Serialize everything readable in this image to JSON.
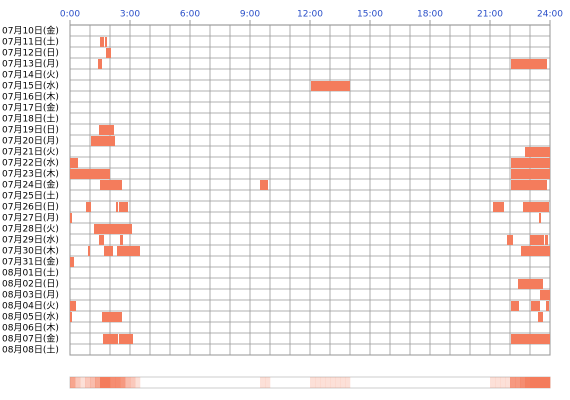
{
  "chart_data": {
    "type": "timeline",
    "color": "#f47c5c",
    "xlim": [
      0,
      24
    ],
    "xticks": [
      {
        "value": 0,
        "label": "0:00"
      },
      {
        "value": 3,
        "label": "3:00"
      },
      {
        "value": 6,
        "label": "6:00"
      },
      {
        "value": 9,
        "label": "9:00"
      },
      {
        "value": 12,
        "label": "12:00"
      },
      {
        "value": 15,
        "label": "15:00"
      },
      {
        "value": 18,
        "label": "18:00"
      },
      {
        "value": 21,
        "label": "21:00"
      },
      {
        "value": 24,
        "label": "24:00"
      }
    ],
    "grid": true,
    "rows": [
      {
        "label": "07月10日(金)",
        "segments": []
      },
      {
        "label": "07月11日(土)",
        "segments": [
          [
            1.5,
            1.7
          ],
          [
            1.75,
            1.85
          ]
        ]
      },
      {
        "label": "07月12日(日)",
        "segments": [
          [
            1.8,
            2.05
          ]
        ]
      },
      {
        "label": "07月13日(月)",
        "segments": [
          [
            1.4,
            1.6
          ],
          [
            22.05,
            23.85
          ]
        ]
      },
      {
        "label": "07月14日(火)",
        "segments": []
      },
      {
        "label": "07月15日(水)",
        "segments": [
          [
            12.05,
            14.0
          ]
        ]
      },
      {
        "label": "07月16日(木)",
        "segments": []
      },
      {
        "label": "07月17日(金)",
        "segments": []
      },
      {
        "label": "07月18日(土)",
        "segments": []
      },
      {
        "label": "07月19日(日)",
        "segments": [
          [
            1.45,
            2.2
          ]
        ]
      },
      {
        "label": "07月20日(月)",
        "segments": [
          [
            1.05,
            2.25
          ]
        ]
      },
      {
        "label": "07月21日(火)",
        "segments": [
          [
            22.75,
            24
          ]
        ]
      },
      {
        "label": "07月22日(水)",
        "segments": [
          [
            0,
            0.4
          ],
          [
            22.05,
            24
          ]
        ]
      },
      {
        "label": "07月23日(木)",
        "segments": [
          [
            0,
            2.0
          ],
          [
            22.05,
            24
          ]
        ]
      },
      {
        "label": "07月24日(金)",
        "segments": [
          [
            1.5,
            2.6
          ],
          [
            9.5,
            9.9
          ],
          [
            22.05,
            23.85
          ]
        ]
      },
      {
        "label": "07月25日(土)",
        "segments": []
      },
      {
        "label": "07月26日(日)",
        "segments": [
          [
            0.8,
            1.05
          ],
          [
            2.3,
            2.4
          ],
          [
            2.45,
            2.9
          ],
          [
            21.15,
            21.7
          ],
          [
            22.65,
            23.95
          ]
        ]
      },
      {
        "label": "07月27日(月)",
        "segments": [
          [
            0,
            0.1
          ],
          [
            23.45,
            23.55
          ]
        ]
      },
      {
        "label": "07月28日(火)",
        "segments": [
          [
            1.2,
            3.1
          ]
        ]
      },
      {
        "label": "07月29日(水)",
        "segments": [
          [
            1.45,
            1.7
          ],
          [
            2.5,
            2.65
          ],
          [
            21.85,
            22.15
          ],
          [
            23.0,
            23.7
          ],
          [
            23.75,
            23.9
          ]
        ]
      },
      {
        "label": "07月30日(木)",
        "segments": [
          [
            0.9,
            1.0
          ],
          [
            1.7,
            2.15
          ],
          [
            2.35,
            3.5
          ],
          [
            22.55,
            24
          ]
        ]
      },
      {
        "label": "07月31日(金)",
        "segments": [
          [
            0,
            0.2
          ]
        ]
      },
      {
        "label": "08月01日(土)",
        "segments": []
      },
      {
        "label": "08月02日(日)",
        "segments": [
          [
            22.4,
            23.65
          ]
        ]
      },
      {
        "label": "08月03日(月)",
        "segments": [
          [
            23.5,
            24
          ]
        ]
      },
      {
        "label": "08月04日(火)",
        "segments": [
          [
            0,
            0.3
          ],
          [
            22.05,
            22.45
          ],
          [
            23.05,
            23.5
          ],
          [
            23.8,
            23.95
          ]
        ]
      },
      {
        "label": "08月05日(水)",
        "segments": [
          [
            0,
            0.1
          ],
          [
            1.6,
            2.6
          ],
          [
            23.4,
            23.65
          ]
        ]
      },
      {
        "label": "08月06日(木)",
        "segments": []
      },
      {
        "label": "08月07日(金)",
        "segments": [
          [
            1.65,
            2.4
          ],
          [
            2.45,
            3.15
          ],
          [
            22.05,
            24
          ]
        ]
      },
      {
        "label": "08月08日(土)",
        "segments": []
      }
    ]
  }
}
